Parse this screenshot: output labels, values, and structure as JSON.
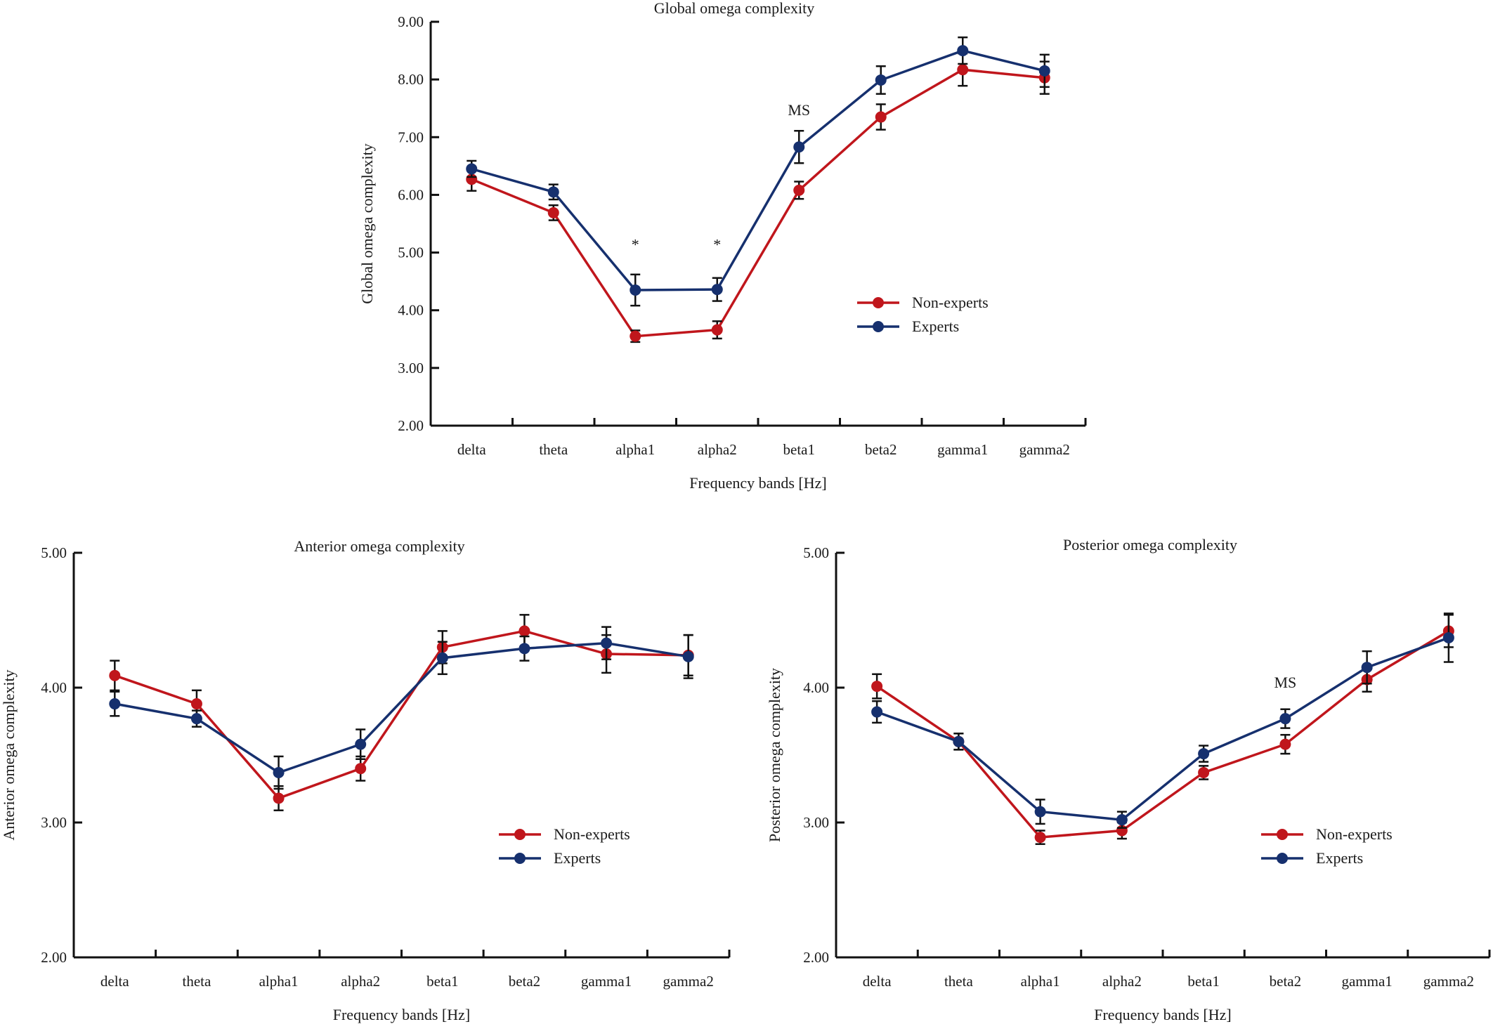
{
  "colors": {
    "nonexperts": "#c0161c",
    "experts": "#16306e",
    "axis": "#111111"
  },
  "legend": [
    "Non-experts",
    "Experts"
  ],
  "chart_data": [
    {
      "id": "global",
      "type": "line",
      "title": "Global omega complexity",
      "xlabel": "Frequency bands [Hz]",
      "ylabel": "Global omega complexity",
      "ylim": [
        2.0,
        9.0
      ],
      "yticks": [
        "2.00",
        "3.00",
        "4.00",
        "5.00",
        "6.00",
        "7.00",
        "8.00",
        "9.00"
      ],
      "categories": [
        "delta",
        "theta",
        "alpha1",
        "alpha2",
        "beta1",
        "beta2",
        "gamma1",
        "gamma2"
      ],
      "legend_position": "right-middle",
      "series": [
        {
          "name": "Non-experts",
          "values": [
            6.27,
            5.69,
            3.55,
            3.66,
            6.08,
            7.35,
            8.17,
            8.03
          ],
          "errors": [
            0.2,
            0.13,
            0.1,
            0.15,
            0.15,
            0.22,
            0.28,
            0.28
          ]
        },
        {
          "name": "Experts",
          "values": [
            6.45,
            6.05,
            4.35,
            4.36,
            6.83,
            7.99,
            8.5,
            8.15
          ],
          "errors": [
            0.14,
            0.13,
            0.27,
            0.2,
            0.28,
            0.24,
            0.23,
            0.28
          ]
        }
      ],
      "annotations": [
        {
          "text": "*",
          "category": "alpha1",
          "y": 5.05
        },
        {
          "text": "*",
          "category": "alpha2",
          "y": 5.05
        },
        {
          "text": "MS",
          "category": "beta1",
          "y": 7.38
        }
      ]
    },
    {
      "id": "anterior",
      "type": "line",
      "title": "Anterior omega complexity",
      "xlabel": "Frequency bands [Hz]",
      "ylabel": "Anterior omega complexity",
      "ylim": [
        2.0,
        5.0
      ],
      "yticks": [
        "2.00",
        "3.00",
        "4.00",
        "5.00"
      ],
      "categories": [
        "delta",
        "theta",
        "alpha1",
        "alpha2",
        "beta1",
        "beta2",
        "gamma1",
        "gamma2"
      ],
      "legend_position": "right-middle",
      "series": [
        {
          "name": "Non-experts",
          "values": [
            4.09,
            3.88,
            3.18,
            3.4,
            4.3,
            4.42,
            4.25,
            4.24
          ],
          "errors": [
            0.11,
            0.1,
            0.09,
            0.09,
            0.12,
            0.12,
            0.14,
            0.15
          ]
        },
        {
          "name": "Experts",
          "values": [
            3.88,
            3.77,
            3.37,
            3.58,
            4.22,
            4.29,
            4.33,
            4.23
          ],
          "errors": [
            0.09,
            0.06,
            0.12,
            0.11,
            0.12,
            0.09,
            0.12,
            0.16
          ]
        }
      ],
      "annotations": []
    },
    {
      "id": "posterior",
      "type": "line",
      "title": "Posterior omega complexity",
      "xlabel": "Frequency bands [Hz]",
      "ylabel": "Posterior omega complexity",
      "ylim": [
        2.0,
        5.0
      ],
      "yticks": [
        "2.00",
        "3.00",
        "4.00",
        "5.00"
      ],
      "categories": [
        "delta",
        "theta",
        "alpha1",
        "alpha2",
        "beta1",
        "beta2",
        "gamma1",
        "gamma2"
      ],
      "legend_position": "right-middle",
      "series": [
        {
          "name": "Non-experts",
          "values": [
            4.01,
            3.6,
            2.89,
            2.94,
            3.37,
            3.58,
            4.06,
            4.42
          ],
          "errors": [
            0.09,
            0.06,
            0.05,
            0.06,
            0.05,
            0.07,
            0.09,
            0.12
          ]
        },
        {
          "name": "Experts",
          "values": [
            3.82,
            3.6,
            3.08,
            3.02,
            3.51,
            3.77,
            4.15,
            4.37
          ],
          "errors": [
            0.08,
            0.06,
            0.09,
            0.06,
            0.06,
            0.07,
            0.12,
            0.18
          ]
        }
      ],
      "annotations": [
        {
          "text": "MS",
          "category": "beta2",
          "y": 4.0
        }
      ]
    }
  ]
}
